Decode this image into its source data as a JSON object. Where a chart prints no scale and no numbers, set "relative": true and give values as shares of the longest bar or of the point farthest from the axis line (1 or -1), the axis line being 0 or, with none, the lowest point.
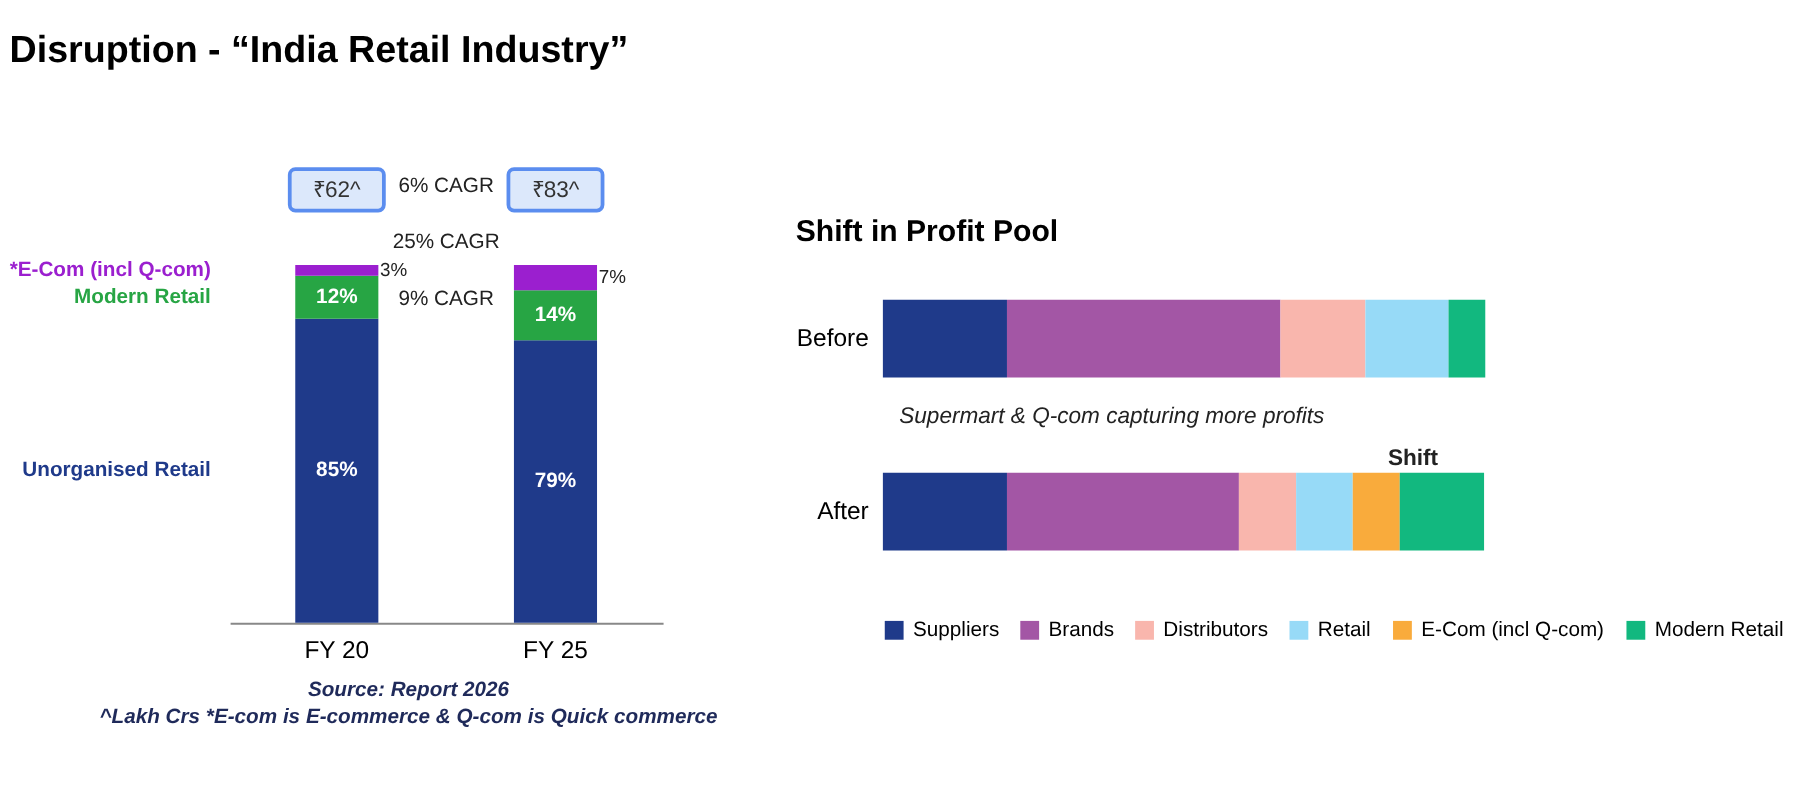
{
  "chart_data": [
    {
      "type": "bar",
      "title": "Disruption - “India Retail Industry”",
      "categories": [
        "FY 20",
        "FY 25"
      ],
      "stacked": true,
      "legend": false,
      "tick_labels": "x",
      "series": [
        {
          "name": "Unorganised Retail",
          "color": "#1f3a8a",
          "values": [
            85,
            79
          ],
          "value_labels": [
            "85%",
            "79%"
          ]
        },
        {
          "name": "Modern Retail",
          "color": "#27a544",
          "values": [
            12,
            14
          ],
          "value_labels": [
            "12%",
            "14%"
          ]
        },
        {
          "name": "*E-Com (incl Q-com)",
          "color": "#9b1fcf",
          "values": [
            3,
            7
          ],
          "value_labels": [
            "3%",
            "7%"
          ]
        }
      ],
      "annotations": [
        "₹62^",
        "₹83^",
        "6% CAGR",
        "25% CAGR",
        "9% CAGR",
        "Source: Report 2026",
        "^Lakh Crs *E-com is E-commerce & Q-com is Quick commerce"
      ]
    },
    {
      "type": "bar",
      "title": "Shift in Profit Pool",
      "categories": [
        "Before",
        "After"
      ],
      "stacked": true,
      "orientation": "horizontal",
      "relative": true,
      "legend": "bottom",
      "series": [
        {
          "name": "Suppliers",
          "color": "#1f3a8a",
          "values": [
            0.206,
            0.206
          ]
        },
        {
          "name": "Brands",
          "color": "#a356a5",
          "values": [
            0.454,
            0.385
          ]
        },
        {
          "name": "Distributors",
          "color": "#f9b6ad",
          "values": [
            0.141,
            0.095
          ]
        },
        {
          "name": "Retail",
          "color": "#97daf7",
          "values": [
            0.138,
            0.094
          ]
        },
        {
          "name": "E-Com (incl Q-com)",
          "color": "#f9ab3c",
          "values": [
            null,
            0.078
          ]
        },
        {
          "name": "Modern Retail",
          "color": "#12b87f",
          "values": [
            0.061,
            0.14
          ]
        }
      ],
      "annotations": [
        "Supermart & Q-com capturing more profits",
        "Shift"
      ]
    }
  ]
}
